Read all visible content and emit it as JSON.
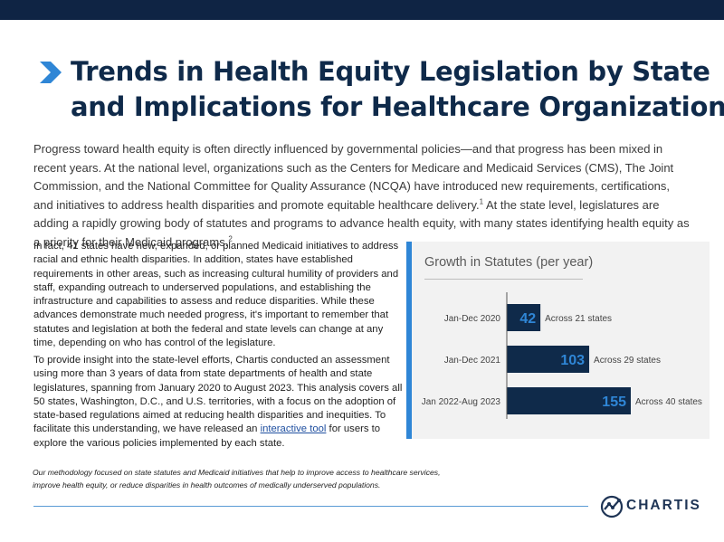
{
  "header": {
    "title_line1": "Trends in Health Equity Legislation by State",
    "title_line2": "and Implications for Healthcare Organizations"
  },
  "intro": {
    "text_a": "Progress toward health equity is often directly influenced by governmental policies—and that progress has been mixed in recent years. At the national level, organizations such as the Centers for Medicare and Medicaid Services (CMS), The Joint Commission, and the National Committee for Quality Assurance (NCQA) have introduced new requirements, certifications, and initiatives to address health disparities and promote equitable healthcare delivery.",
    "sup_a": "1",
    "text_b": " At the state level, legislatures are adding a rapidly growing body of statutes and programs to advance health equity, with many states identifying health equity as a priority for their Medicaid programs.",
    "sup_b": "2"
  },
  "body": {
    "para1": "In fact, 41 states have new, expanded, or planned Medicaid initiatives to address racial and ethnic health disparities. In addition, states have established requirements in other areas, such as increasing cultural humility of providers and staff, expanding outreach to underserved populations, and establishing the infrastructure and capabilities to assess and reduce disparities. While these advances demonstrate much needed progress, it's important to remember that statutes and legislation at both the federal and state levels can change at any time, depending on who has control of the legislature.",
    "para2_before": "To provide insight into the state-level efforts, Chartis conducted an assessment using more than 3 years of data from state departments of health and state legislatures, spanning from January 2020 to August 2023. This analysis covers all 50 states, Washington, D.C., and U.S. territories, with a focus on the adoption of state-based regulations aimed at reducing health disparities and inequities. To facilitate this understanding, we have released an ",
    "para2_link": "interactive tool",
    "para2_after": " for users to explore the various policies implemented by each state."
  },
  "chart_data": {
    "type": "bar",
    "orientation": "horizontal",
    "title": "Growth in Statutes (per year)",
    "categories": [
      "Jan-Dec 2020",
      "Jan-Dec 2021",
      "Jan 2022-Aug 2023"
    ],
    "values": [
      42,
      103,
      155
    ],
    "annotations": [
      "Across 21 states",
      "Across 29 states",
      "Across 40 states"
    ],
    "xlim": [
      0,
      155
    ],
    "grid": false,
    "bar_color": "#0f2a4a",
    "label_color": "#2f86d6"
  },
  "footer": {
    "methodology_line1": "Our methodology focused on state statutes and Medicaid initiatives that help to improve access to healthcare services,",
    "methodology_line2": "improve health equity, or reduce disparities in health outcomes of medically underserved populations.",
    "logo_text": "CHARTIS"
  },
  "colors": {
    "top_bar": "#0f2444",
    "title": "#0f2a4a",
    "accent": "#2f86d6",
    "rule": "#5b9bd5"
  },
  "icons": {
    "title_marker": "chevron-right-icon",
    "logo_mark": "chartis-logo-icon"
  }
}
